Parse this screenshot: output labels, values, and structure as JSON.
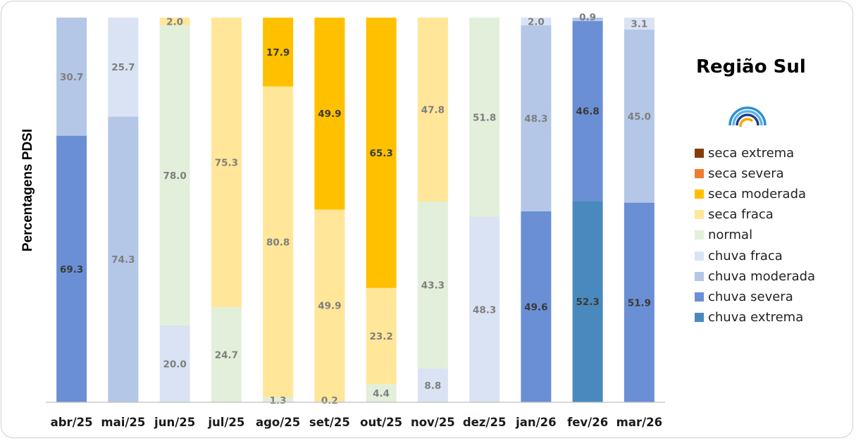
{
  "title": "Região Sul",
  "chart_data": {
    "type": "bar",
    "stacked": true,
    "percent_scale": true,
    "title": "Região Sul",
    "ylabel": "Percentagens PDSI",
    "xlabel": "",
    "ylim": [
      0,
      100
    ],
    "grid": false,
    "legend_position": "right",
    "categories": [
      "abr/25",
      "mai/25",
      "jun/25",
      "jul/25",
      "ago/25",
      "set/25",
      "out/25",
      "nov/25",
      "dez/25",
      "jan/26",
      "fev/26",
      "mar/26"
    ],
    "series": [
      {
        "name": "seca extrema",
        "color": "#843C0C",
        "values": [
          0,
          0,
          0,
          0,
          0,
          0,
          0,
          0,
          0,
          0,
          0,
          0
        ]
      },
      {
        "name": "seca severa",
        "color": "#ED7D31",
        "values": [
          0,
          0,
          0,
          0,
          0,
          0,
          0,
          0,
          0,
          0,
          0,
          0
        ]
      },
      {
        "name": "seca moderada",
        "color": "#FFC000",
        "values": [
          0,
          0,
          0,
          0,
          17.9,
          49.9,
          65.3,
          0,
          0,
          0,
          0,
          0
        ]
      },
      {
        "name": "seca fraca",
        "color": "#FFE699",
        "values": [
          0,
          0,
          2.0,
          75.3,
          80.8,
          49.9,
          23.2,
          47.8,
          0,
          0,
          0,
          0
        ]
      },
      {
        "name": "normal",
        "color": "#E2EFDA",
        "values": [
          0,
          0,
          78.0,
          24.7,
          1.3,
          0.2,
          4.4,
          43.3,
          51.8,
          0,
          0,
          0
        ]
      },
      {
        "name": "chuva fraca",
        "color": "#DAE3F3",
        "values": [
          0,
          25.7,
          20.0,
          0,
          0,
          0,
          0,
          8.8,
          48.3,
          2.0,
          0,
          3.1
        ]
      },
      {
        "name": "chuva moderada",
        "color": "#B4C7E7",
        "values": [
          30.7,
          74.3,
          0,
          0,
          0,
          0,
          0,
          0,
          0,
          48.3,
          0.9,
          45.0
        ]
      },
      {
        "name": "chuva severa",
        "color": "#6A8FD4",
        "values": [
          69.3,
          0,
          0,
          0,
          0,
          0,
          0,
          0,
          0,
          49.6,
          46.8,
          51.9
        ]
      },
      {
        "name": "chuva extrema",
        "color": "#4A89BD",
        "values": [
          0,
          0,
          0,
          0,
          0,
          0,
          0,
          0,
          0,
          0,
          52.3,
          0
        ]
      }
    ],
    "data_labels": [
      [
        "69.3",
        "30.7"
      ],
      [
        "74.3",
        "25.7"
      ],
      [
        "20.0",
        "78.0",
        "2.0"
      ],
      [
        "24.7",
        "75.3"
      ],
      [
        "1.3",
        "80.8",
        "17.9"
      ],
      [
        "0.2",
        "49.9",
        "49.9"
      ],
      [
        "4.4",
        "23.2",
        "65.3"
      ],
      [
        "8.8",
        "43.3",
        "47.8"
      ],
      [
        "48.3",
        "51.8"
      ],
      [
        "49.6",
        "48.3",
        "2.0"
      ],
      [
        "52.3",
        "46.8",
        "0.9"
      ],
      [
        "51.9",
        "45.0",
        "3.1"
      ]
    ]
  }
}
